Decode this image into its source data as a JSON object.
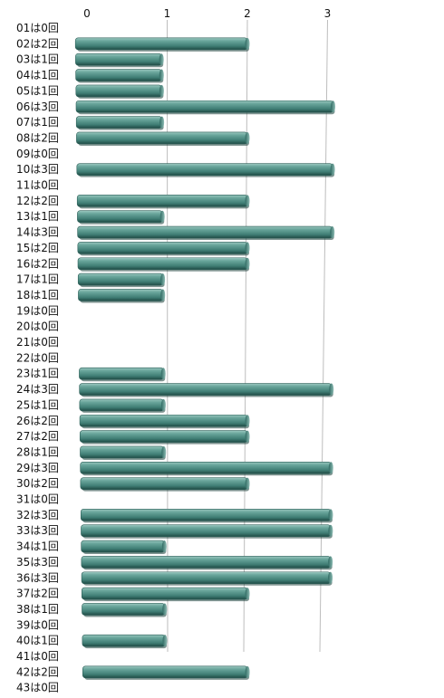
{
  "chart_data": {
    "type": "bar",
    "orientation": "horizontal",
    "style": "3d-cylindrical",
    "xlim": [
      0,
      3
    ],
    "xticks": [
      "0",
      "1",
      "2",
      "3"
    ],
    "grid": true,
    "bar_color": "#4f8f86",
    "categories": [
      "01は0回",
      "02は2回",
      "03は1回",
      "04は1回",
      "05は1回",
      "06は3回",
      "07は1回",
      "08は2回",
      "09は0回",
      "10は3回",
      "11は0回",
      "12は2回",
      "13は1回",
      "14は3回",
      "15は2回",
      "16は2回",
      "17は1回",
      "18は1回",
      "19は0回",
      "20は0回",
      "21は0回",
      "22は0回",
      "23は1回",
      "24は3回",
      "25は1回",
      "26は2回",
      "27は2回",
      "28は1回",
      "29は3回",
      "30は2回",
      "31は0回",
      "32は3回",
      "33は3回",
      "34は1回",
      "35は3回",
      "36は3回",
      "37は2回",
      "38は1回",
      "39は0回",
      "40は1回",
      "41は0回",
      "42は2回",
      "43は0回"
    ],
    "values": [
      0,
      2,
      1,
      1,
      1,
      3,
      1,
      2,
      0,
      3,
      0,
      2,
      1,
      3,
      2,
      2,
      1,
      1,
      0,
      0,
      0,
      0,
      1,
      3,
      1,
      2,
      2,
      1,
      3,
      2,
      0,
      3,
      3,
      1,
      3,
      3,
      2,
      1,
      0,
      1,
      0,
      2,
      0
    ]
  }
}
